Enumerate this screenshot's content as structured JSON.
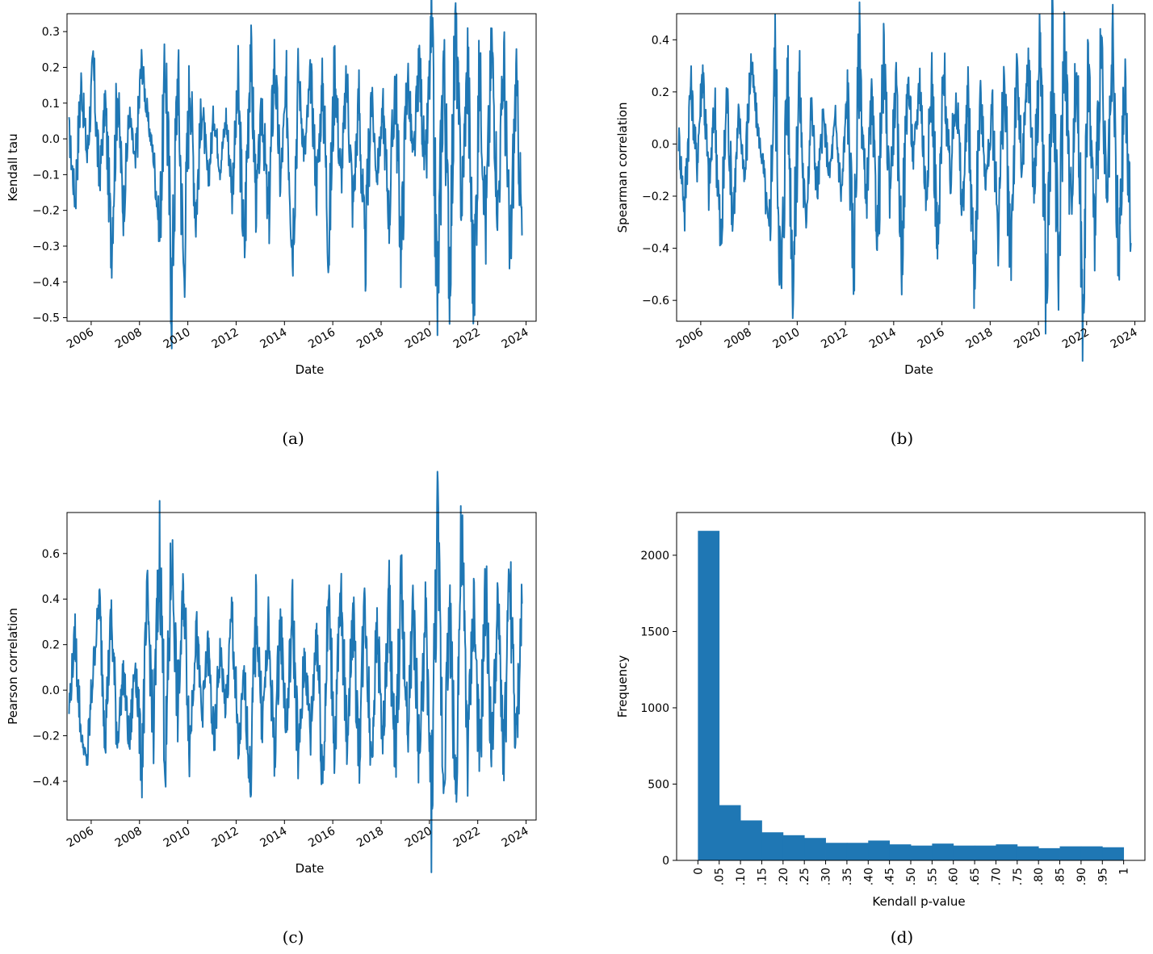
{
  "panels": [
    {
      "caption": "(a)"
    },
    {
      "caption": "(b)"
    },
    {
      "caption": "(c)"
    },
    {
      "caption": "(d)"
    }
  ],
  "chart_data": [
    {
      "type": "line",
      "xlabel": "Date",
      "ylabel": "Kendall tau",
      "ylim": [
        -0.51,
        0.35
      ],
      "yticks": [
        -0.5,
        -0.4,
        -0.3,
        -0.2,
        -0.1,
        0.0,
        0.1,
        0.2,
        0.3
      ],
      "ytick_labels": [
        "−0.5",
        "−0.4",
        "−0.3",
        "−0.2",
        "−0.1",
        "0.0",
        "0.1",
        "0.2",
        "0.3"
      ],
      "xlim": [
        "2005-01-01",
        "2024-06-01"
      ],
      "xtick_labels": [
        "2006",
        "2008",
        "2010",
        "2012",
        "2014",
        "2016",
        "2018",
        "2020",
        "2022",
        "2024"
      ],
      "color": "#1f77b4",
      "grid": false,
      "series": [
        {
          "x": [
            "2005-02",
            "2005-05",
            "2005-08",
            "2005-11",
            "2006-02",
            "2006-05",
            "2006-08",
            "2006-11",
            "2007-02",
            "2007-05",
            "2007-08",
            "2007-11",
            "2008-02",
            "2008-05",
            "2008-08",
            "2008-11",
            "2009-02",
            "2009-05",
            "2009-08",
            "2009-11",
            "2010-02",
            "2010-05",
            "2010-08",
            "2010-11",
            "2011-02",
            "2011-05",
            "2011-08",
            "2011-11",
            "2012-02",
            "2012-05",
            "2012-08",
            "2012-11",
            "2013-02",
            "2013-05",
            "2013-08",
            "2013-11",
            "2014-02",
            "2014-05",
            "2014-08",
            "2014-11",
            "2015-02",
            "2015-05",
            "2015-08",
            "2015-11",
            "2016-02",
            "2016-05",
            "2016-08",
            "2016-11",
            "2017-02",
            "2017-05",
            "2017-08",
            "2017-11",
            "2018-02",
            "2018-05",
            "2018-08",
            "2018-11",
            "2019-02",
            "2019-05",
            "2019-08",
            "2019-11",
            "2020-02",
            "2020-05",
            "2020-08",
            "2020-11",
            "2021-02",
            "2021-05",
            "2021-08",
            "2021-11",
            "2022-02",
            "2022-05",
            "2022-08",
            "2022-11",
            "2023-02",
            "2023-05",
            "2023-08",
            "2023-11"
          ],
          "y": [
            0.02,
            -0.17,
            0.16,
            -0.05,
            0.21,
            -0.12,
            0.1,
            -0.3,
            0.14,
            -0.2,
            0.07,
            -0.08,
            0.22,
            0.06,
            -0.05,
            -0.26,
            0.24,
            -0.44,
            0.2,
            -0.38,
            0.18,
            -0.22,
            0.1,
            -0.12,
            0.07,
            -0.08,
            0.06,
            -0.14,
            0.14,
            -0.33,
            0.27,
            -0.18,
            0.1,
            -0.25,
            0.23,
            -0.12,
            0.14,
            -0.3,
            0.18,
            -0.05,
            0.18,
            -0.14,
            0.17,
            -0.31,
            0.21,
            -0.12,
            0.17,
            -0.19,
            0.12,
            -0.36,
            0.13,
            -0.1,
            0.08,
            -0.22,
            0.18,
            -0.33,
            0.2,
            -0.08,
            0.22,
            -0.12,
            0.3,
            -0.47,
            0.25,
            -0.37,
            0.31,
            -0.18,
            0.22,
            -0.45,
            0.2,
            -0.25,
            0.27,
            -0.2,
            0.22,
            -0.36,
            0.17,
            -0.27
          ]
        }
      ]
    },
    {
      "type": "line",
      "xlabel": "Date",
      "ylabel": "Spearman correlation",
      "ylim": [
        -0.68,
        0.5
      ],
      "yticks": [
        -0.6,
        -0.4,
        -0.2,
        0.0,
        0.2,
        0.4
      ],
      "ytick_labels": [
        "−0.6",
        "−0.4",
        "−0.2",
        "0.0",
        "0.2",
        "0.4"
      ],
      "xlim": [
        "2005-01-01",
        "2024-06-01"
      ],
      "xtick_labels": [
        "2006",
        "2008",
        "2010",
        "2012",
        "2014",
        "2016",
        "2018",
        "2020",
        "2022",
        "2024"
      ],
      "color": "#1f77b4",
      "grid": false,
      "series": [
        {
          "x": [
            "2005-02",
            "2005-05",
            "2005-08",
            "2005-11",
            "2006-02",
            "2006-05",
            "2006-08",
            "2006-11",
            "2007-02",
            "2007-05",
            "2007-08",
            "2007-11",
            "2008-02",
            "2008-05",
            "2008-08",
            "2008-11",
            "2009-02",
            "2009-05",
            "2009-08",
            "2009-11",
            "2010-02",
            "2010-05",
            "2010-08",
            "2010-11",
            "2011-02",
            "2011-05",
            "2011-08",
            "2011-11",
            "2012-02",
            "2012-05",
            "2012-08",
            "2012-11",
            "2013-02",
            "2013-05",
            "2013-08",
            "2013-11",
            "2014-02",
            "2014-05",
            "2014-08",
            "2014-11",
            "2015-02",
            "2015-05",
            "2015-08",
            "2015-11",
            "2016-02",
            "2016-05",
            "2016-08",
            "2016-11",
            "2017-02",
            "2017-05",
            "2017-08",
            "2017-11",
            "2018-02",
            "2018-05",
            "2018-08",
            "2018-11",
            "2019-02",
            "2019-05",
            "2019-08",
            "2019-11",
            "2020-02",
            "2020-05",
            "2020-08",
            "2020-11",
            "2021-02",
            "2021-05",
            "2021-08",
            "2021-11",
            "2022-02",
            "2022-05",
            "2022-08",
            "2022-11",
            "2023-02",
            "2023-05",
            "2023-08",
            "2023-11"
          ],
          "y": [
            0.03,
            -0.25,
            0.24,
            -0.08,
            0.3,
            -0.18,
            0.15,
            -0.42,
            0.2,
            -0.28,
            0.1,
            -0.12,
            0.32,
            0.08,
            -0.08,
            -0.37,
            0.34,
            -0.6,
            0.29,
            -0.53,
            0.26,
            -0.32,
            0.14,
            -0.18,
            0.1,
            -0.12,
            0.09,
            -0.2,
            0.2,
            -0.46,
            0.39,
            -0.26,
            0.15,
            -0.36,
            0.33,
            -0.18,
            0.2,
            -0.42,
            0.26,
            -0.07,
            0.26,
            -0.2,
            0.24,
            -0.44,
            0.3,
            -0.17,
            0.24,
            -0.27,
            0.17,
            -0.51,
            0.19,
            -0.14,
            0.12,
            -0.32,
            0.26,
            -0.47,
            0.29,
            -0.12,
            0.32,
            -0.18,
            0.44,
            -0.62,
            0.37,
            -0.52,
            0.45,
            -0.26,
            0.32,
            -0.62,
            0.29,
            -0.36,
            0.39,
            -0.28,
            0.32,
            -0.51,
            0.25,
            -0.38
          ]
        }
      ]
    },
    {
      "type": "line",
      "xlabel": "Date",
      "ylabel": "Pearson correlation",
      "ylim": [
        -0.57,
        0.78
      ],
      "yticks": [
        -0.4,
        -0.2,
        0.0,
        0.2,
        0.4,
        0.6
      ],
      "ytick_labels": [
        "−0.4",
        "−0.2",
        "0.0",
        "0.2",
        "0.4",
        "0.6"
      ],
      "xlim": [
        "2005-01-01",
        "2024-06-01"
      ],
      "xtick_labels": [
        "2006",
        "2008",
        "2010",
        "2012",
        "2014",
        "2016",
        "2018",
        "2020",
        "2022",
        "2024"
      ],
      "color": "#1f77b4",
      "grid": false,
      "series": [
        {
          "x": [
            "2005-02",
            "2005-05",
            "2005-08",
            "2005-11",
            "2006-02",
            "2006-05",
            "2006-08",
            "2006-11",
            "2007-02",
            "2007-05",
            "2007-08",
            "2007-11",
            "2008-02",
            "2008-05",
            "2008-08",
            "2008-11",
            "2009-02",
            "2009-05",
            "2009-08",
            "2009-11",
            "2010-02",
            "2010-05",
            "2010-08",
            "2010-11",
            "2011-02",
            "2011-05",
            "2011-08",
            "2011-11",
            "2012-02",
            "2012-05",
            "2012-08",
            "2012-11",
            "2013-02",
            "2013-05",
            "2013-08",
            "2013-11",
            "2014-02",
            "2014-05",
            "2014-08",
            "2014-11",
            "2015-02",
            "2015-05",
            "2015-08",
            "2015-11",
            "2016-02",
            "2016-05",
            "2016-08",
            "2016-11",
            "2017-02",
            "2017-05",
            "2017-08",
            "2017-11",
            "2018-02",
            "2018-05",
            "2018-08",
            "2018-11",
            "2019-02",
            "2019-05",
            "2019-08",
            "2019-11",
            "2020-02",
            "2020-05",
            "2020-08",
            "2020-11",
            "2021-02",
            "2021-05",
            "2021-08",
            "2021-11",
            "2022-02",
            "2022-05",
            "2022-08",
            "2022-11",
            "2023-02",
            "2023-05",
            "2023-08",
            "2023-11"
          ],
          "y": [
            -0.08,
            0.24,
            -0.2,
            -0.32,
            0.1,
            0.39,
            -0.18,
            0.32,
            -0.22,
            0.08,
            -0.25,
            0.15,
            -0.34,
            0.39,
            -0.2,
            0.63,
            -0.33,
            0.61,
            -0.1,
            0.46,
            -0.25,
            0.3,
            -0.12,
            0.2,
            -0.26,
            0.18,
            -0.1,
            0.36,
            -0.3,
            0.06,
            -0.4,
            0.36,
            -0.15,
            0.26,
            -0.28,
            0.3,
            -0.18,
            0.35,
            -0.32,
            0.16,
            -0.2,
            0.3,
            -0.38,
            0.4,
            -0.25,
            0.41,
            -0.22,
            0.33,
            -0.28,
            0.42,
            -0.3,
            0.28,
            -0.24,
            0.4,
            -0.36,
            0.48,
            -0.2,
            0.36,
            -0.32,
            0.3,
            -0.5,
            0.72,
            -0.4,
            0.38,
            -0.44,
            0.67,
            -0.3,
            0.4,
            -0.35,
            0.45,
            -0.28,
            0.35,
            -0.3,
            0.5,
            -0.28,
            0.38
          ]
        }
      ]
    },
    {
      "type": "bar",
      "xlabel": "Kendall p-value",
      "ylabel": "Frequency",
      "ylim": [
        0,
        2280
      ],
      "yticks": [
        0,
        500,
        1000,
        1500,
        2000
      ],
      "ytick_labels": [
        "0",
        "500",
        "1000",
        "1500",
        "2000"
      ],
      "xlim": [
        -0.05,
        1.05
      ],
      "xtick_labels": [
        "0",
        ".05",
        ".10",
        ".15",
        ".20",
        ".25",
        ".30",
        ".35",
        ".40",
        ".45",
        ".50",
        ".55",
        ".60",
        ".65",
        ".70",
        ".75",
        ".80",
        ".85",
        ".90",
        ".95",
        "1"
      ],
      "bin_edges": [
        0,
        0.05,
        0.1,
        0.15,
        0.2,
        0.25,
        0.3,
        0.35,
        0.4,
        0.45,
        0.5,
        0.55,
        0.6,
        0.65,
        0.7,
        0.75,
        0.8,
        0.85,
        0.9,
        0.95,
        1.0
      ],
      "values": [
        2160,
        362,
        262,
        184,
        165,
        147,
        115,
        115,
        130,
        105,
        97,
        110,
        97,
        97,
        105,
        92,
        80,
        92,
        92,
        86
      ],
      "color": "#1f77b4",
      "grid": false
    }
  ]
}
